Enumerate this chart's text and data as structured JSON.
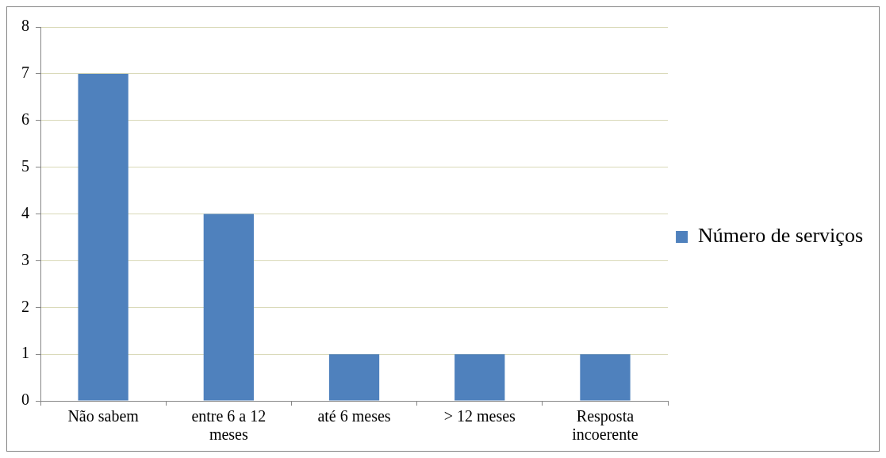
{
  "chart_data": {
    "type": "bar",
    "categories": [
      "Não sabem",
      "entre 6 a 12 meses",
      "até 6 meses",
      "> 12 meses",
      "Resposta incoerente"
    ],
    "series": [
      {
        "name": "Número de serviços",
        "color": "#4f81bd",
        "values": [
          7,
          4,
          1,
          1,
          1
        ]
      }
    ],
    "ylim": [
      0,
      8
    ],
    "yticks": [
      0,
      1,
      2,
      3,
      4,
      5,
      6,
      7,
      8
    ],
    "grid": "y",
    "legend": "right"
  }
}
